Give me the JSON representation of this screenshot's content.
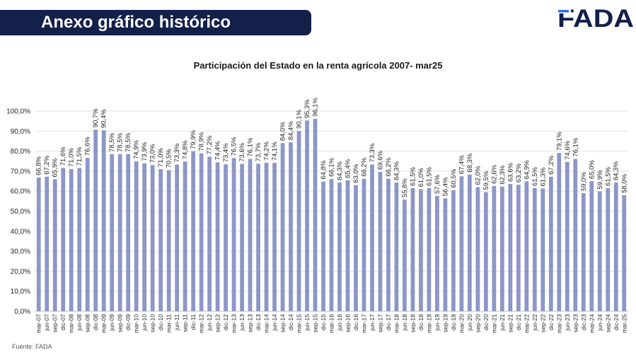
{
  "header": {
    "title": "Anexo gráfico histórico"
  },
  "brand": {
    "name": "FADA",
    "color": "#13204a"
  },
  "colors": {
    "bar": "#8d96c6",
    "grid": "#e3e3e3",
    "axis": "#bfbfbf",
    "text": "#262626"
  },
  "footer": {
    "source": "Fuente: FADA"
  },
  "chart_data": {
    "type": "bar",
    "title": "Participación del Estado en la renta agrícola 2007-  mar25",
    "xlabel": "",
    "ylabel": "",
    "ylim": [
      0,
      100
    ],
    "yticks": [
      "0,0%",
      "10,0%",
      "20,0%",
      "30,0%",
      "40,0%",
      "50,0%",
      "60,0%",
      "70,0%",
      "80,0%",
      "90,0%",
      "100,0%"
    ],
    "grid": true,
    "legend": "none",
    "categories": [
      "mar-07",
      "jun-07",
      "sep-07",
      "dic-07",
      "mar-08",
      "jun-08",
      "sep-08",
      "dic-08",
      "mar-09",
      "jun-09",
      "sep-09",
      "dic-09",
      "mar-10",
      "jun-10",
      "sep-10",
      "dic-10",
      "mar-11",
      "jun-11",
      "sep-11",
      "dic-11",
      "mar-12",
      "jun-12",
      "sep-12",
      "dic-12",
      "mar-13",
      "jun-13",
      "sep-13",
      "dic-13",
      "mar-14",
      "jun-14",
      "sep-14",
      "dic-14",
      "mar-15",
      "jun-15",
      "sep-15",
      "dic-15",
      "mar-16",
      "jun-16",
      "sep-16",
      "dic-16",
      "mar-17",
      "jun-17",
      "sep-17",
      "dic-17",
      "mar-18",
      "jun-18",
      "sep-18",
      "dic-18",
      "mar-19",
      "jun-19",
      "sep-19",
      "dic-19",
      "mar-20",
      "jun-20",
      "sep-20",
      "dic-20",
      "mar-21",
      "jun-21",
      "sep-21",
      "dic-21",
      "mar-22",
      "jun-22",
      "sep-22",
      "dic-22",
      "mar-23",
      "jun-23",
      "sep-23",
      "dic-23",
      "mar-24",
      "jun-24",
      "sep-24",
      "dic-24",
      "mar-25"
    ],
    "values": [
      66.8,
      67.2,
      65.9,
      71.6,
      71.0,
      71.5,
      76.6,
      90.7,
      90.4,
      78.5,
      78.5,
      78.5,
      74.9,
      73.9,
      73.0,
      71.0,
      70.5,
      73.3,
      74.8,
      79.9,
      78.9,
      77.2,
      74.4,
      73.4,
      76.5,
      73.6,
      76.1,
      73.7,
      74.2,
      74.1,
      84.0,
      84.4,
      90.1,
      95.3,
      96.1,
      64.8,
      66.1,
      64.3,
      65.4,
      63.0,
      66.2,
      73.3,
      69.6,
      66.2,
      64.3,
      55.8,
      61.5,
      61.0,
      61.5,
      57.6,
      56.4,
      60.5,
      67.4,
      68.3,
      62.0,
      59.5,
      62.6,
      62.3,
      63.6,
      63.2,
      64.9,
      61.5,
      61.3,
      67.2,
      79.1,
      74.6,
      76.1,
      59.0,
      65.0,
      59.9,
      61.5,
      64.3,
      58.0
    ],
    "value_labels": [
      "66,8%",
      "67,2%",
      "65,9%",
      "71,6%",
      "71,0%",
      "71,5%",
      "76,6%",
      "90,7%",
      "90,4%",
      "78,5%",
      "78,5%",
      "78,5%",
      "74,9%",
      "73,9%",
      "73,0%",
      "71,0%",
      "70,5%",
      "73,3%",
      "74,8%",
      "79,9%",
      "78,9%",
      "77,2%",
      "74,4%",
      "73,4%",
      "76,5%",
      "73,6%",
      "76,1%",
      "73,7%",
      "74,2%",
      "74,1%",
      "84,0%",
      "84,4%",
      "90,1%",
      "95,3%",
      "96,1%",
      "64,8%",
      "66,1%",
      "64,3%",
      "65,4%",
      "63,0%",
      "66,2%",
      "73,3%",
      "69,6%",
      "66,2%",
      "64,3%",
      "55,8%",
      "61,5%",
      "61,0%",
      "61,5%",
      "57,6%",
      "56,4%",
      "60,5%",
      "67,4%",
      "68,3%",
      "62,0%",
      "59,5%",
      "62,6%",
      "62,3%",
      "63,6%",
      "63,2%",
      "64,9%",
      "61,5%",
      "61,3%",
      "67,2%",
      "79,1%",
      "74,6%",
      "76,1%",
      "59,0%",
      "65,0%",
      "59,9%",
      "61,5%",
      "64,3%",
      "58,0%"
    ]
  }
}
